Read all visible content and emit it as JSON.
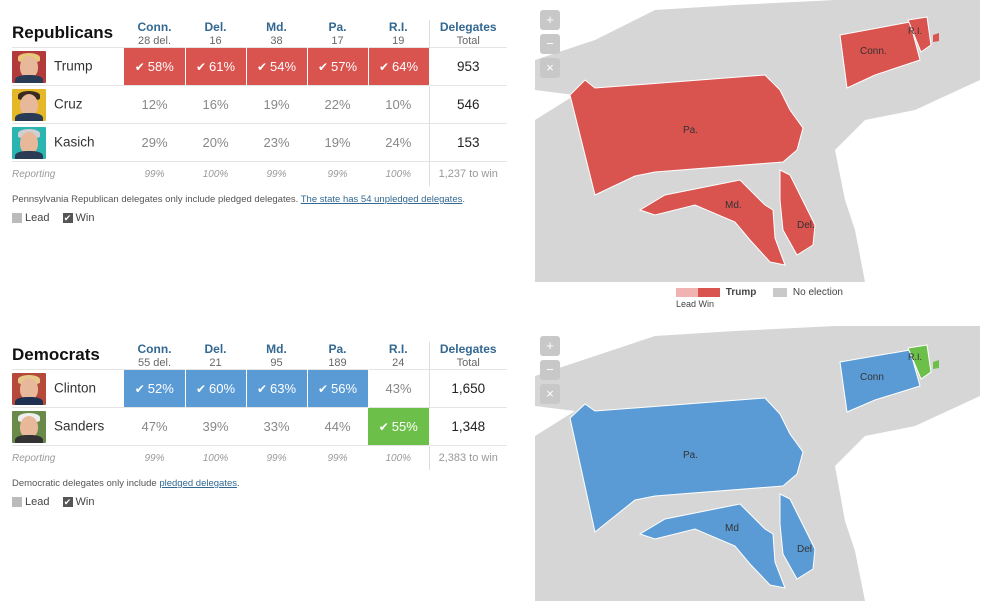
{
  "chart_data": [
    {
      "type": "table",
      "title": "Republicans",
      "columns": [
        {
          "state": "Conn.",
          "sub": "28 del."
        },
        {
          "state": "Del.",
          "sub": "16"
        },
        {
          "state": "Md.",
          "sub": "38"
        },
        {
          "state": "Pa.",
          "sub": "17"
        },
        {
          "state": "R.I.",
          "sub": "19"
        }
      ],
      "total_header": "Delegates",
      "total_sub": "Total",
      "rows": [
        {
          "name": "Trump",
          "values": [
            "58%",
            "61%",
            "54%",
            "57%",
            "64%"
          ],
          "wins": [
            true,
            true,
            true,
            true,
            true
          ],
          "total": "953"
        },
        {
          "name": "Cruz",
          "values": [
            "12%",
            "16%",
            "19%",
            "22%",
            "10%"
          ],
          "wins": [
            false,
            false,
            false,
            false,
            false
          ],
          "total": "546"
        },
        {
          "name": "Kasich",
          "values": [
            "29%",
            "20%",
            "23%",
            "19%",
            "24%"
          ],
          "wins": [
            false,
            false,
            false,
            false,
            false
          ],
          "total": "153"
        }
      ],
      "reporting_label": "Reporting",
      "reporting": [
        "99%",
        "100%",
        "99%",
        "99%",
        "100%"
      ],
      "to_win": "1,237 to win",
      "note_text": "Pennsylvania Republican delegates only include pledged delegates. ",
      "note_link": "The state has 54 unpledged delegates",
      "note_end": ".",
      "legend_lead": "Lead",
      "legend_win": "Win"
    },
    {
      "type": "table",
      "title": "Democrats",
      "columns": [
        {
          "state": "Conn.",
          "sub": "55 del."
        },
        {
          "state": "Del.",
          "sub": "21"
        },
        {
          "state": "Md.",
          "sub": "95"
        },
        {
          "state": "Pa.",
          "sub": "189"
        },
        {
          "state": "R.I.",
          "sub": "24"
        }
      ],
      "total_header": "Delegates",
      "total_sub": "Total",
      "rows": [
        {
          "name": "Clinton",
          "values": [
            "52%",
            "60%",
            "63%",
            "56%",
            "43%"
          ],
          "wins": [
            true,
            true,
            true,
            true,
            false
          ],
          "total": "1,650"
        },
        {
          "name": "Sanders",
          "values": [
            "47%",
            "39%",
            "33%",
            "44%",
            "55%"
          ],
          "wins": [
            false,
            false,
            false,
            false,
            true
          ],
          "total": "1,348"
        }
      ],
      "reporting_label": "Reporting",
      "reporting": [
        "99%",
        "100%",
        "99%",
        "99%",
        "100%"
      ],
      "to_win": "2,383 to win",
      "note_text": "Democratic delegates only include ",
      "note_link": "pledged delegates",
      "note_end": ".",
      "legend_lead": "Lead",
      "legend_win": "Win"
    }
  ],
  "maps": {
    "rep": {
      "labels": {
        "pa": "Pa.",
        "md": "Md.",
        "del": "Del.",
        "conn": "Conn.",
        "ri": "R.I."
      },
      "legend": {
        "lead": "Lead",
        "win": "Win",
        "winner": "Trump",
        "none": "No election"
      }
    },
    "dem": {
      "labels": {
        "pa": "Pa.",
        "md": "Md",
        "del": "Del",
        "conn": "Conn",
        "ri": "R.I."
      }
    }
  },
  "colors": {
    "rep_win": "#d9534f",
    "rep_lead": "#f0b3b1",
    "dem_win": "#5b9bd5",
    "sanders_win": "#6cc04a",
    "no_election": "#c9c9c9",
    "land": "#d6d6d6"
  },
  "zoom": {
    "in": "+",
    "out": "−",
    "reset": "×"
  }
}
